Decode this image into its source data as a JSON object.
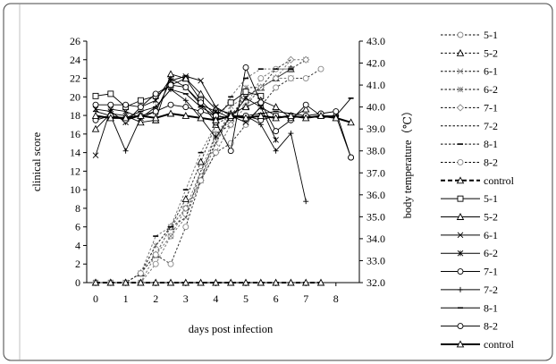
{
  "chart_data": {
    "type": "line",
    "xlabel": "days post infection",
    "ylabel": "clinical score",
    "y2label": "body temperature（℃）",
    "xticks": [
      0,
      1,
      2,
      3,
      4,
      5,
      6,
      7,
      8
    ],
    "ylim": [
      0,
      26
    ],
    "yticks": [
      0,
      2,
      4,
      6,
      8,
      10,
      12,
      14,
      16,
      18,
      20,
      22,
      24,
      26
    ],
    "y2lim": [
      32.0,
      43.0
    ],
    "y2ticks": [
      "32.0",
      "33.0",
      "34.0",
      "35.0",
      "36.0",
      "37.0",
      "38.0",
      "39.0",
      "40.0",
      "41.0",
      "42.0",
      "43.0"
    ],
    "legend_position": "right",
    "clinical_score_series": [
      {
        "name": "5-1",
        "marker": "circle-gray",
        "points": [
          [
            0,
            0
          ],
          [
            0.5,
            0
          ],
          [
            1,
            0
          ],
          [
            1.5,
            0
          ],
          [
            2,
            2
          ],
          [
            2.5,
            5
          ],
          [
            3,
            8
          ],
          [
            3.5,
            12
          ],
          [
            4,
            16
          ],
          [
            4.5,
            18
          ],
          [
            5,
            19
          ],
          [
            5.5,
            22
          ],
          [
            6,
            23
          ],
          [
            6.5,
            23
          ]
        ]
      },
      {
        "name": "5-2",
        "marker": "triangle",
        "points": [
          [
            0,
            0
          ],
          [
            0.5,
            0
          ],
          [
            1,
            0
          ],
          [
            1.5,
            1
          ],
          [
            2,
            3
          ],
          [
            2.5,
            6
          ],
          [
            3,
            9
          ],
          [
            3.5,
            13
          ],
          [
            4,
            17
          ],
          [
            4.5,
            18
          ],
          [
            5,
            19
          ],
          [
            5.5,
            21
          ],
          [
            6,
            22
          ],
          [
            6.5,
            23
          ]
        ]
      },
      {
        "name": "6-1",
        "marker": "x-gray",
        "points": [
          [
            0,
            0
          ],
          [
            0.5,
            0
          ],
          [
            1,
            0
          ],
          [
            1.5,
            0
          ],
          [
            2,
            3
          ],
          [
            2.5,
            5
          ],
          [
            3,
            7
          ],
          [
            3.5,
            11
          ],
          [
            4,
            15
          ],
          [
            4.5,
            19
          ],
          [
            5,
            20
          ],
          [
            5.5,
            21
          ],
          [
            6,
            22
          ],
          [
            6.5,
            22
          ]
        ]
      },
      {
        "name": "6-2",
        "marker": "star-gray",
        "points": [
          [
            0,
            0
          ],
          [
            0.5,
            0
          ],
          [
            1,
            0
          ],
          [
            1.5,
            1
          ],
          [
            2,
            4
          ],
          [
            2.5,
            6
          ],
          [
            3,
            8
          ],
          [
            3.5,
            11
          ],
          [
            4,
            16
          ],
          [
            4.5,
            17
          ],
          [
            5,
            21
          ],
          [
            5.5,
            21
          ],
          [
            6,
            22
          ],
          [
            6.5,
            23
          ],
          [
            7,
            24
          ]
        ]
      },
      {
        "name": "7-1",
        "marker": "diamond-gray",
        "points": [
          [
            0,
            0
          ],
          [
            0.5,
            0
          ],
          [
            1,
            0
          ],
          [
            1.5,
            1
          ],
          [
            2,
            3
          ],
          [
            2.5,
            6
          ],
          [
            3,
            8
          ],
          [
            3.5,
            11
          ],
          [
            4,
            14
          ],
          [
            4.5,
            17
          ],
          [
            5,
            19
          ],
          [
            5.5,
            21
          ],
          [
            6,
            22
          ],
          [
            6.5,
            24
          ],
          [
            7,
            24
          ]
        ]
      },
      {
        "name": "7-2",
        "marker": "none",
        "points": [
          [
            0,
            0
          ],
          [
            0.5,
            0
          ],
          [
            1,
            0
          ],
          [
            1.5,
            1
          ],
          [
            2,
            4
          ],
          [
            2.5,
            6
          ],
          [
            3,
            7
          ],
          [
            3.5,
            12
          ],
          [
            4,
            15
          ],
          [
            4.5,
            18
          ],
          [
            5,
            20
          ],
          [
            5.5,
            21
          ],
          [
            6,
            23
          ],
          [
            6.5,
            24
          ]
        ]
      },
      {
        "name": "8-1",
        "marker": "dash",
        "points": [
          [
            0,
            0
          ],
          [
            0.5,
            0
          ],
          [
            1,
            0
          ],
          [
            1.5,
            1
          ],
          [
            2,
            5
          ],
          [
            2.5,
            6
          ],
          [
            3,
            10
          ],
          [
            3.5,
            14
          ],
          [
            4,
            17
          ],
          [
            4.5,
            20
          ],
          [
            5,
            22
          ],
          [
            5.5,
            23
          ],
          [
            6,
            23
          ],
          [
            6.5,
            23
          ]
        ]
      },
      {
        "name": "8-2",
        "marker": "circle-gray",
        "points": [
          [
            0,
            0
          ],
          [
            0.5,
            0
          ],
          [
            1,
            0
          ],
          [
            1.5,
            1
          ],
          [
            2,
            3
          ],
          [
            2.5,
            2
          ],
          [
            3,
            6
          ],
          [
            3.5,
            11
          ],
          [
            4,
            14
          ],
          [
            4.5,
            15
          ],
          [
            5,
            17
          ],
          [
            5.5,
            19
          ],
          [
            6,
            21
          ],
          [
            6.5,
            22
          ],
          [
            7,
            22
          ],
          [
            7.5,
            23
          ]
        ]
      },
      {
        "name": "control",
        "marker": "triangle",
        "points": [
          [
            0,
            0
          ],
          [
            0.5,
            0
          ],
          [
            1,
            0
          ],
          [
            1.5,
            0
          ],
          [
            2,
            0
          ],
          [
            2.5,
            0
          ],
          [
            3,
            0
          ],
          [
            3.5,
            0
          ],
          [
            4,
            0
          ],
          [
            4.5,
            0
          ],
          [
            5,
            0
          ],
          [
            5.5,
            0
          ],
          [
            6,
            0
          ],
          [
            6.5,
            0
          ],
          [
            7,
            0
          ],
          [
            7.5,
            0
          ]
        ]
      }
    ],
    "body_temperature_series": [
      {
        "name": "5-1",
        "marker": "square",
        "points": [
          [
            0,
            40.5
          ],
          [
            0.5,
            40.6
          ],
          [
            1,
            40.0
          ],
          [
            1.5,
            40.3
          ],
          [
            2,
            40.5
          ],
          [
            2.5,
            41.0
          ],
          [
            3,
            41.3
          ],
          [
            3.5,
            40.3
          ],
          [
            4,
            39.6
          ],
          [
            4.5,
            40.2
          ],
          [
            5,
            40.7
          ],
          [
            5.5,
            40.5
          ]
        ]
      },
      {
        "name": "5-2",
        "marker": "triangle",
        "points": [
          [
            0,
            39.0
          ],
          [
            0.5,
            39.7
          ],
          [
            1,
            39.6
          ],
          [
            1.5,
            39.3
          ],
          [
            2,
            39.4
          ],
          [
            2.5,
            41.5
          ],
          [
            3,
            41.3
          ],
          [
            3.5,
            40.6
          ],
          [
            4,
            39.9
          ],
          [
            4.5,
            39.7
          ],
          [
            5,
            40.0
          ],
          [
            5.5,
            40.3
          ],
          [
            6,
            40.0
          ],
          [
            6.5,
            39.5
          ],
          [
            7,
            39.9
          ]
        ]
      },
      {
        "name": "6-1",
        "marker": "x",
        "points": [
          [
            0,
            37.8
          ],
          [
            0.5,
            39.9
          ],
          [
            1,
            39.8
          ],
          [
            1.5,
            39.5
          ],
          [
            2,
            39.8
          ],
          [
            2.5,
            41.2
          ],
          [
            3,
            41.4
          ],
          [
            3.5,
            41.2
          ],
          [
            4,
            40.0
          ],
          [
            4.5,
            39.6
          ],
          [
            5,
            39.3
          ],
          [
            5.5,
            40.0
          ],
          [
            6,
            39.6
          ]
        ]
      },
      {
        "name": "6-2",
        "marker": "star",
        "points": [
          [
            0,
            39.9
          ],
          [
            0.5,
            39.8
          ],
          [
            1,
            39.3
          ],
          [
            1.5,
            40.0
          ],
          [
            2,
            40.3
          ],
          [
            2.5,
            41.3
          ],
          [
            3,
            40.9
          ],
          [
            3.5,
            40.1
          ],
          [
            4,
            39.8
          ],
          [
            4.5,
            39.5
          ],
          [
            5,
            40.4
          ],
          [
            5.5,
            40.0
          ],
          [
            6,
            38.5
          ]
        ]
      },
      {
        "name": "7-1",
        "marker": "circle",
        "points": [
          [
            0,
            40.1
          ],
          [
            0.5,
            40.1
          ],
          [
            1,
            40.1
          ],
          [
            1.5,
            40.0
          ],
          [
            2,
            40.6
          ],
          [
            2.5,
            41.0
          ],
          [
            3,
            40.9
          ],
          [
            3.5,
            40.2
          ],
          [
            4,
            39.3
          ],
          [
            4.5,
            38.0
          ],
          [
            5,
            41.8
          ],
          [
            5.5,
            40.2
          ],
          [
            6,
            38.9
          ],
          [
            6.5,
            39.4
          ],
          [
            7,
            40.1
          ],
          [
            7.5,
            39.6
          ],
          [
            8,
            39.6
          ],
          [
            8.5,
            37.7
          ]
        ]
      },
      {
        "name": "7-2",
        "marker": "plus",
        "points": [
          [
            0,
            39.8
          ],
          [
            0.5,
            39.6
          ],
          [
            1,
            38.0
          ],
          [
            1.5,
            39.5
          ],
          [
            2,
            40.0
          ],
          [
            2.5,
            40.8
          ],
          [
            3,
            40.3
          ],
          [
            3.5,
            39.5
          ],
          [
            4,
            38.6
          ],
          [
            4.5,
            39.6
          ],
          [
            5,
            39.6
          ],
          [
            5.5,
            39.2
          ],
          [
            6,
            38.0
          ],
          [
            6.5,
            38.8
          ],
          [
            7,
            35.7
          ]
        ]
      },
      {
        "name": "8-1",
        "marker": "dash",
        "points": [
          [
            0,
            39.5
          ],
          [
            0.5,
            39.6
          ],
          [
            1,
            39.5
          ],
          [
            1.5,
            39.8
          ],
          [
            2,
            40.0
          ],
          [
            2.5,
            40.8
          ],
          [
            3,
            40.6
          ],
          [
            3.5,
            40.0
          ],
          [
            4,
            39.6
          ],
          [
            4.5,
            39.5
          ],
          [
            5,
            39.6
          ],
          [
            5.5,
            39.7
          ],
          [
            6,
            39.8
          ],
          [
            6.5,
            39.7
          ],
          [
            7,
            39.6
          ],
          [
            7.5,
            39.5
          ],
          [
            8,
            39.6
          ],
          [
            8.5,
            40.4
          ]
        ]
      },
      {
        "name": "8-2",
        "marker": "circle",
        "points": [
          [
            0,
            39.4
          ],
          [
            0.5,
            39.6
          ],
          [
            1,
            39.4
          ],
          [
            1.5,
            39.6
          ],
          [
            2,
            39.8
          ],
          [
            2.5,
            40.1
          ],
          [
            3,
            40.0
          ],
          [
            3.5,
            39.8
          ],
          [
            4,
            39.6
          ],
          [
            4.5,
            39.5
          ],
          [
            5,
            39.6
          ],
          [
            5.5,
            39.4
          ],
          [
            6,
            39.6
          ],
          [
            6.5,
            39.5
          ],
          [
            7,
            39.6
          ],
          [
            7.5,
            39.7
          ],
          [
            8,
            39.8
          ],
          [
            8.5,
            37.7
          ]
        ]
      },
      {
        "name": "control",
        "marker": "triangle",
        "points": [
          [
            0,
            39.6
          ],
          [
            0.5,
            39.5
          ],
          [
            1,
            39.5
          ],
          [
            1.5,
            39.6
          ],
          [
            2,
            39.5
          ],
          [
            2.5,
            39.7
          ],
          [
            3,
            39.6
          ],
          [
            3.5,
            39.5
          ],
          [
            4,
            39.4
          ],
          [
            4.5,
            39.6
          ],
          [
            5,
            39.5
          ],
          [
            5.5,
            39.6
          ],
          [
            6,
            39.5
          ],
          [
            6.5,
            39.6
          ],
          [
            7,
            39.5
          ],
          [
            7.5,
            39.6
          ],
          [
            8,
            39.5
          ],
          [
            8.5,
            39.3
          ]
        ]
      }
    ]
  }
}
